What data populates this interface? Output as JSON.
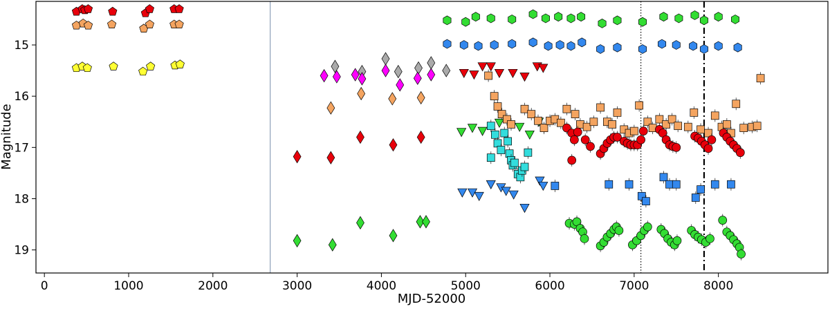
{
  "chart_data": {
    "type": "scatter",
    "title": "",
    "xlabel": "MJD-52000",
    "ylabel": "Magnitude",
    "xlim": [
      -100,
      9300
    ],
    "ylim": [
      19.45,
      14.15
    ],
    "y_inverted": true,
    "grid": false,
    "legend": "none",
    "x_ticks": [
      0,
      1000,
      2000,
      3000,
      4000,
      5000,
      6000,
      7000,
      8000
    ],
    "y_ticks": [
      15,
      16,
      17,
      18,
      19
    ],
    "vertical_lines": [
      {
        "x": 2680,
        "style": "solid",
        "color": "#8ea0b8"
      },
      {
        "x": 7080,
        "style": "dotted",
        "color": "#000000"
      },
      {
        "x": 7830,
        "style": "dashdot",
        "color": "#000000"
      }
    ],
    "series": [
      {
        "marker": "pentagon",
        "color": "#e8000b",
        "points": [
          [
            380,
            14.35
          ],
          [
            450,
            14.3
          ],
          [
            480,
            14.32
          ],
          [
            520,
            14.3
          ],
          [
            810,
            14.35
          ],
          [
            1200,
            14.38
          ],
          [
            1250,
            14.3
          ],
          [
            1540,
            14.3
          ],
          [
            1600,
            14.3
          ]
        ]
      },
      {
        "marker": "pentagon",
        "color": "#f4a460",
        "points": [
          [
            380,
            14.62
          ],
          [
            460,
            14.58
          ],
          [
            520,
            14.62
          ],
          [
            800,
            14.6
          ],
          [
            1180,
            14.68
          ],
          [
            1250,
            14.6
          ],
          [
            1540,
            14.6
          ],
          [
            1600,
            14.6
          ]
        ]
      },
      {
        "marker": "pentagon",
        "color": "#ffff33",
        "points": [
          [
            380,
            15.45
          ],
          [
            450,
            15.42
          ],
          [
            510,
            15.45
          ],
          [
            820,
            15.42
          ],
          [
            1170,
            15.52
          ],
          [
            1260,
            15.42
          ],
          [
            1550,
            15.4
          ],
          [
            1610,
            15.38
          ]
        ]
      },
      {
        "marker": "diamond",
        "color": "#e8000b",
        "points": [
          [
            3000,
            17.18
          ],
          [
            3400,
            17.2
          ],
          [
            3750,
            16.8
          ],
          [
            4140,
            16.95
          ],
          [
            4470,
            16.8
          ]
        ]
      },
      {
        "marker": "diamond",
        "color": "#f4a460",
        "points": [
          [
            3400,
            16.23
          ],
          [
            3760,
            15.95
          ],
          [
            4130,
            16.05
          ],
          [
            4470,
            16.03
          ]
        ]
      },
      {
        "marker": "diamond",
        "color": "#aaaaaa",
        "points": [
          [
            3450,
            15.42
          ],
          [
            3770,
            15.52
          ],
          [
            4050,
            15.27
          ],
          [
            4200,
            15.52
          ],
          [
            4440,
            15.45
          ],
          [
            4590,
            15.35
          ],
          [
            4770,
            15.5
          ]
        ]
      },
      {
        "marker": "diamond",
        "color": "#ff00ff",
        "points": [
          [
            3320,
            15.6
          ],
          [
            3470,
            15.62
          ],
          [
            3690,
            15.58
          ],
          [
            3770,
            15.66
          ],
          [
            4050,
            15.5
          ],
          [
            4220,
            15.78
          ],
          [
            4430,
            15.65
          ],
          [
            4590,
            15.58
          ]
        ]
      },
      {
        "marker": "diamond",
        "color": "#33dd33",
        "points": [
          [
            3000,
            18.82
          ],
          [
            3420,
            18.9
          ],
          [
            3750,
            18.47
          ],
          [
            4140,
            18.72
          ],
          [
            4460,
            18.45
          ],
          [
            4530,
            18.45
          ]
        ]
      },
      {
        "marker": "triangle-down",
        "color": "#e8000b",
        "points": [
          [
            4980,
            15.55
          ],
          [
            5100,
            15.58
          ],
          [
            5200,
            15.42
          ],
          [
            5300,
            15.42
          ],
          [
            5400,
            15.55
          ],
          [
            5560,
            15.55
          ],
          [
            5700,
            15.62
          ],
          [
            5850,
            15.42
          ],
          [
            5920,
            15.45
          ]
        ]
      },
      {
        "marker": "triangle-down",
        "color": "#33dd33",
        "points": [
          [
            4950,
            16.7
          ],
          [
            5080,
            16.62
          ],
          [
            5200,
            16.68
          ],
          [
            5400,
            16.52
          ],
          [
            5640,
            16.6
          ],
          [
            5760,
            16.75
          ],
          [
            5870,
            16.5
          ],
          [
            5930,
            16.62
          ]
        ]
      },
      {
        "marker": "triangle-down",
        "color": "#3388ee",
        "points": [
          [
            4960,
            17.88
          ],
          [
            5080,
            17.88
          ],
          [
            5160,
            17.95
          ],
          [
            5300,
            17.72
          ],
          [
            5420,
            17.78
          ],
          [
            5480,
            17.85
          ],
          [
            5570,
            17.92
          ],
          [
            5700,
            18.18
          ],
          [
            5880,
            17.65
          ],
          [
            5920,
            17.75
          ]
        ]
      },
      {
        "marker": "square",
        "color": "#f4a460",
        "points": [
          [
            5270,
            15.6
          ],
          [
            5340,
            16.0
          ],
          [
            5380,
            16.2
          ],
          [
            5430,
            16.35
          ],
          [
            5490,
            16.45
          ],
          [
            5540,
            16.55
          ],
          [
            5700,
            16.25
          ],
          [
            5780,
            16.35
          ],
          [
            5860,
            16.48
          ],
          [
            5930,
            16.62
          ],
          [
            6000,
            16.48
          ],
          [
            6060,
            16.45
          ],
          [
            6130,
            16.52
          ],
          [
            6200,
            16.25
          ],
          [
            6300,
            16.35
          ],
          [
            6360,
            16.55
          ],
          [
            6440,
            16.6
          ],
          [
            6520,
            16.5
          ],
          [
            6600,
            16.22
          ],
          [
            6680,
            16.5
          ],
          [
            6740,
            16.55
          ],
          [
            6800,
            16.32
          ],
          [
            6880,
            16.65
          ],
          [
            6940,
            16.72
          ],
          [
            7000,
            16.68
          ],
          [
            7060,
            16.18
          ],
          [
            7160,
            16.5
          ],
          [
            7220,
            16.62
          ],
          [
            7300,
            16.45
          ],
          [
            7380,
            16.55
          ],
          [
            7450,
            16.45
          ],
          [
            7520,
            16.58
          ],
          [
            7640,
            16.6
          ],
          [
            7710,
            16.32
          ],
          [
            7790,
            16.65
          ],
          [
            7880,
            16.72
          ],
          [
            7960,
            16.38
          ],
          [
            8040,
            16.6
          ],
          [
            8100,
            16.55
          ],
          [
            8150,
            16.72
          ],
          [
            8210,
            16.15
          ],
          [
            8300,
            16.62
          ],
          [
            8400,
            16.6
          ],
          [
            8460,
            16.58
          ],
          [
            8500,
            15.65
          ]
        ]
      },
      {
        "marker": "circle",
        "color": "#e8000b",
        "points": [
          [
            6200,
            16.62
          ],
          [
            6260,
            16.72
          ],
          [
            6290,
            16.85
          ],
          [
            6330,
            16.7
          ],
          [
            6420,
            16.85
          ],
          [
            6480,
            16.98
          ],
          [
            6260,
            17.25
          ],
          [
            6600,
            17.12
          ],
          [
            6640,
            17.02
          ],
          [
            6680,
            16.92
          ],
          [
            6720,
            16.85
          ],
          [
            6760,
            16.8
          ],
          [
            6800,
            16.8
          ],
          [
            6880,
            16.88
          ],
          [
            6920,
            16.92
          ],
          [
            6960,
            16.95
          ],
          [
            7000,
            16.95
          ],
          [
            7040,
            16.95
          ],
          [
            7080,
            16.85
          ],
          [
            7110,
            16.68
          ],
          [
            7300,
            16.65
          ],
          [
            7340,
            16.72
          ],
          [
            7380,
            16.85
          ],
          [
            7420,
            16.95
          ],
          [
            7460,
            16.98
          ],
          [
            7500,
            17.0
          ],
          [
            7720,
            16.78
          ],
          [
            7760,
            16.82
          ],
          [
            7800,
            16.88
          ],
          [
            7840,
            16.95
          ],
          [
            7880,
            17.02
          ],
          [
            7920,
            16.85
          ],
          [
            8060,
            16.72
          ],
          [
            8100,
            16.8
          ],
          [
            8140,
            16.88
          ],
          [
            8180,
            16.95
          ],
          [
            8220,
            17.02
          ],
          [
            8260,
            17.1
          ]
        ]
      },
      {
        "marker": "square",
        "color": "#33dddd",
        "points": [
          [
            5300,
            16.58
          ],
          [
            5350,
            16.75
          ],
          [
            5380,
            16.92
          ],
          [
            5420,
            17.05
          ],
          [
            5300,
            17.2
          ],
          [
            5460,
            16.72
          ],
          [
            5500,
            16.88
          ],
          [
            5520,
            17.12
          ],
          [
            5540,
            17.25
          ],
          [
            5560,
            17.35
          ],
          [
            5580,
            17.3
          ],
          [
            5620,
            17.52
          ],
          [
            5650,
            17.58
          ],
          [
            5670,
            17.45
          ],
          [
            5700,
            17.38
          ],
          [
            5740,
            17.1
          ]
        ]
      },
      {
        "marker": "square",
        "color": "#3388ee",
        "points": [
          [
            6060,
            17.75
          ],
          [
            6700,
            17.72
          ],
          [
            6940,
            17.72
          ],
          [
            7090,
            17.95
          ],
          [
            7140,
            18.05
          ],
          [
            7350,
            17.58
          ],
          [
            7420,
            17.72
          ],
          [
            7500,
            17.72
          ],
          [
            7730,
            17.98
          ],
          [
            7790,
            17.82
          ],
          [
            7960,
            17.72
          ],
          [
            8150,
            17.72
          ]
        ]
      },
      {
        "marker": "hexagon",
        "color": "#33dd33",
        "points": [
          [
            4780,
            14.52
          ],
          [
            5000,
            14.55
          ],
          [
            5120,
            14.45
          ],
          [
            5300,
            14.48
          ],
          [
            5550,
            14.5
          ],
          [
            5800,
            14.4
          ],
          [
            5950,
            14.48
          ],
          [
            6100,
            14.45
          ],
          [
            6250,
            14.48
          ],
          [
            6370,
            14.45
          ],
          [
            6620,
            14.58
          ],
          [
            6800,
            14.52
          ],
          [
            7100,
            14.55
          ],
          [
            7350,
            14.45
          ],
          [
            7530,
            14.48
          ],
          [
            7720,
            14.42
          ],
          [
            7830,
            14.52
          ],
          [
            8000,
            14.45
          ],
          [
            8200,
            14.5
          ]
        ]
      },
      {
        "marker": "hexagon",
        "color": "#3388ee",
        "points": [
          [
            4780,
            14.98
          ],
          [
            4980,
            15.0
          ],
          [
            5150,
            15.02
          ],
          [
            5340,
            15.0
          ],
          [
            5550,
            14.98
          ],
          [
            5800,
            14.95
          ],
          [
            5980,
            15.02
          ],
          [
            6120,
            15.0
          ],
          [
            6250,
            15.02
          ],
          [
            6380,
            14.95
          ],
          [
            6600,
            15.08
          ],
          [
            6800,
            15.05
          ],
          [
            7100,
            15.08
          ],
          [
            7330,
            14.98
          ],
          [
            7500,
            15.0
          ],
          [
            7700,
            15.02
          ],
          [
            7830,
            15.08
          ],
          [
            8000,
            15.02
          ],
          [
            8230,
            15.05
          ]
        ]
      },
      {
        "marker": "circle",
        "color": "#33dd33",
        "points": [
          [
            6230,
            18.48
          ],
          [
            6290,
            18.5
          ],
          [
            6320,
            18.45
          ],
          [
            6360,
            18.58
          ],
          [
            6390,
            18.65
          ],
          [
            6410,
            18.78
          ],
          [
            6600,
            18.92
          ],
          [
            6640,
            18.85
          ],
          [
            6680,
            18.75
          ],
          [
            6720,
            18.68
          ],
          [
            6760,
            18.6
          ],
          [
            6790,
            18.55
          ],
          [
            6820,
            18.62
          ],
          [
            6980,
            18.9
          ],
          [
            7030,
            18.82
          ],
          [
            7080,
            18.72
          ],
          [
            7120,
            18.62
          ],
          [
            7160,
            18.55
          ],
          [
            7320,
            18.6
          ],
          [
            7360,
            18.68
          ],
          [
            7400,
            18.78
          ],
          [
            7440,
            18.85
          ],
          [
            7480,
            18.9
          ],
          [
            7510,
            18.82
          ],
          [
            7680,
            18.62
          ],
          [
            7720,
            18.7
          ],
          [
            7760,
            18.75
          ],
          [
            7800,
            18.8
          ],
          [
            7850,
            18.85
          ],
          [
            7900,
            18.78
          ],
          [
            8050,
            18.42
          ],
          [
            8100,
            18.65
          ],
          [
            8140,
            18.72
          ],
          [
            8180,
            18.8
          ],
          [
            8220,
            18.88
          ],
          [
            8250,
            18.95
          ],
          [
            8270,
            19.08
          ]
        ]
      }
    ]
  }
}
